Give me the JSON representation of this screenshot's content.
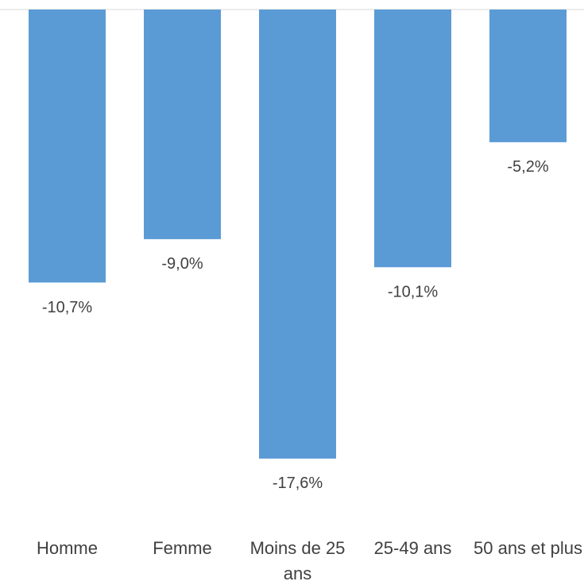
{
  "chart_data": {
    "type": "bar",
    "categories": [
      "Homme",
      "Femme",
      "Moins de 25 ans",
      "25-49 ans",
      "50 ans et plus"
    ],
    "values": [
      -10.7,
      -9.0,
      -17.6,
      -10.1,
      -5.2
    ],
    "value_labels": [
      "-10,7%",
      "-9,0%",
      "-17,6%",
      "-10,1%",
      "-5,2%"
    ],
    "color": "#5b9bd5",
    "ylim": [
      -20,
      0
    ]
  }
}
